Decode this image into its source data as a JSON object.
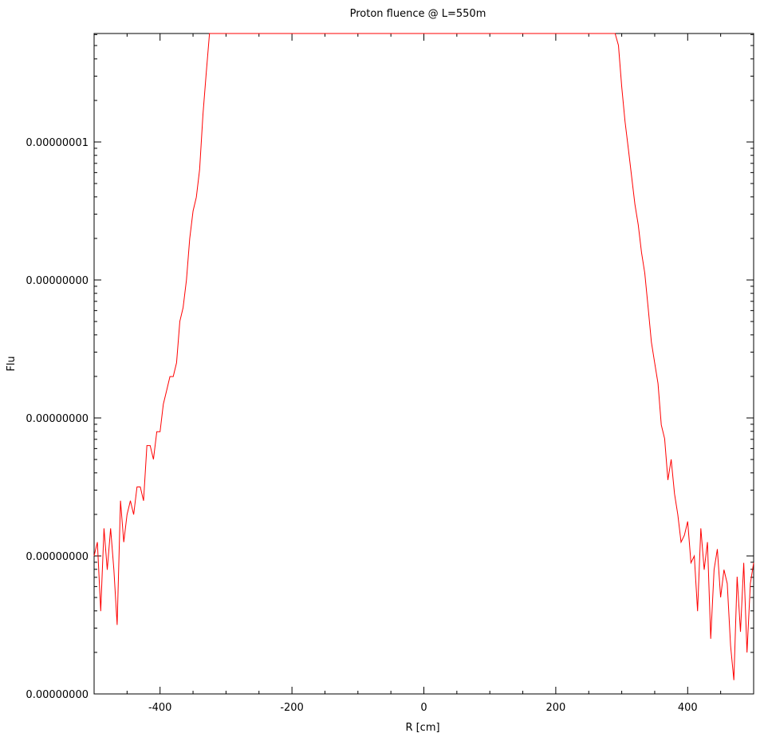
{
  "chart_data": {
    "type": "line",
    "title": "Proton fluence @ L=550m",
    "xlabel": "R [cm]",
    "ylabel": "Flu",
    "xlim": [
      -500,
      500
    ],
    "y_scale": "log",
    "grid": false,
    "x_ticks": [
      {
        "value": -400,
        "label": "-400"
      },
      {
        "value": -200,
        "label": "-200"
      },
      {
        "value": 0,
        "label": "0"
      },
      {
        "value": 200,
        "label": "200"
      },
      {
        "value": 400,
        "label": "400"
      }
    ],
    "y_ticks": [
      {
        "decade": 0,
        "label": "0.00000000"
      },
      {
        "decade": 1,
        "label": "0.00000000"
      },
      {
        "decade": 2,
        "label": "0.00000000"
      },
      {
        "decade": 3,
        "label": "0.00000000"
      },
      {
        "decade": 4,
        "label": "0.00000001"
      }
    ],
    "series": [
      {
        "color": "#ff0000",
        "points_decades": [
          [
            -500,
            1.0
          ],
          [
            -495,
            1.1
          ],
          [
            -490,
            0.6
          ],
          [
            -485,
            1.2
          ],
          [
            -480,
            0.9
          ],
          [
            -475,
            1.2
          ],
          [
            -470,
            0.9
          ],
          [
            -465,
            0.5
          ],
          [
            -460,
            1.4
          ],
          [
            -455,
            1.1
          ],
          [
            -450,
            1.3
          ],
          [
            -445,
            1.4
          ],
          [
            -440,
            1.3
          ],
          [
            -435,
            1.5
          ],
          [
            -430,
            1.5
          ],
          [
            -425,
            1.4
          ],
          [
            -420,
            1.8
          ],
          [
            -415,
            1.8
          ],
          [
            -410,
            1.7
          ],
          [
            -405,
            1.9
          ],
          [
            -400,
            1.9
          ],
          [
            -395,
            2.1
          ],
          [
            -390,
            2.2
          ],
          [
            -385,
            2.3
          ],
          [
            -380,
            2.3
          ],
          [
            -375,
            2.4
          ],
          [
            -370,
            2.7
          ],
          [
            -365,
            2.8
          ],
          [
            -360,
            3.0
          ],
          [
            -355,
            3.3
          ],
          [
            -350,
            3.5
          ],
          [
            -345,
            3.6
          ],
          [
            -340,
            3.8
          ],
          [
            -335,
            4.2
          ],
          [
            -330,
            4.5
          ],
          [
            -325,
            4.9
          ],
          [
            -320,
            5.3
          ],
          [
            -317,
            5.72
          ],
          [
            -310,
            5.73
          ],
          [
            -300,
            5.76
          ],
          [
            -280,
            5.8
          ],
          [
            -260,
            5.85
          ],
          [
            -240,
            5.9
          ],
          [
            -220,
            5.96
          ],
          [
            -200,
            6.03
          ],
          [
            -180,
            6.1
          ],
          [
            -160,
            6.18
          ],
          [
            -140,
            6.28
          ],
          [
            -120,
            6.38
          ],
          [
            -100,
            6.48
          ],
          [
            -80,
            6.6
          ],
          [
            -60,
            6.73
          ],
          [
            -40,
            6.88
          ],
          [
            -20,
            7.05
          ],
          [
            -10,
            7.18
          ],
          [
            -5,
            7.35
          ],
          [
            0,
            7.4
          ],
          [
            5,
            7.35
          ],
          [
            10,
            7.2
          ],
          [
            20,
            7.06
          ],
          [
            40,
            6.86
          ],
          [
            60,
            6.7
          ],
          [
            80,
            6.56
          ],
          [
            100,
            6.44
          ],
          [
            120,
            6.31
          ],
          [
            140,
            6.2
          ],
          [
            160,
            6.1
          ],
          [
            180,
            6.02
          ],
          [
            200,
            5.94
          ],
          [
            220,
            5.87
          ],
          [
            240,
            5.82
          ],
          [
            260,
            5.78
          ],
          [
            280,
            5.75
          ],
          [
            283,
            5.74
          ],
          [
            285,
            5.3
          ],
          [
            290,
            5.0
          ],
          [
            295,
            4.7
          ],
          [
            300,
            4.4
          ],
          [
            305,
            4.15
          ],
          [
            310,
            3.95
          ],
          [
            315,
            3.75
          ],
          [
            320,
            3.55
          ],
          [
            325,
            3.4
          ],
          [
            330,
            3.2
          ],
          [
            335,
            3.05
          ],
          [
            340,
            2.8
          ],
          [
            345,
            2.55
          ],
          [
            350,
            2.4
          ],
          [
            355,
            2.25
          ],
          [
            360,
            1.95
          ],
          [
            365,
            1.85
          ],
          [
            370,
            1.55
          ],
          [
            375,
            1.7
          ],
          [
            380,
            1.45
          ],
          [
            385,
            1.3
          ],
          [
            390,
            1.1
          ],
          [
            395,
            1.15
          ],
          [
            400,
            1.25
          ],
          [
            405,
            0.95
          ],
          [
            410,
            1.0
          ],
          [
            415,
            0.6
          ],
          [
            420,
            1.2
          ],
          [
            425,
            0.9
          ],
          [
            430,
            1.1
          ],
          [
            435,
            0.4
          ],
          [
            440,
            0.9
          ],
          [
            445,
            1.05
          ],
          [
            450,
            0.7
          ],
          [
            455,
            0.9
          ],
          [
            460,
            0.8
          ],
          [
            465,
            0.35
          ],
          [
            470,
            0.1
          ],
          [
            475,
            0.85
          ],
          [
            480,
            0.45
          ],
          [
            485,
            0.95
          ],
          [
            490,
            0.3
          ],
          [
            495,
            0.8
          ],
          [
            500,
            0.95
          ]
        ]
      }
    ]
  }
}
